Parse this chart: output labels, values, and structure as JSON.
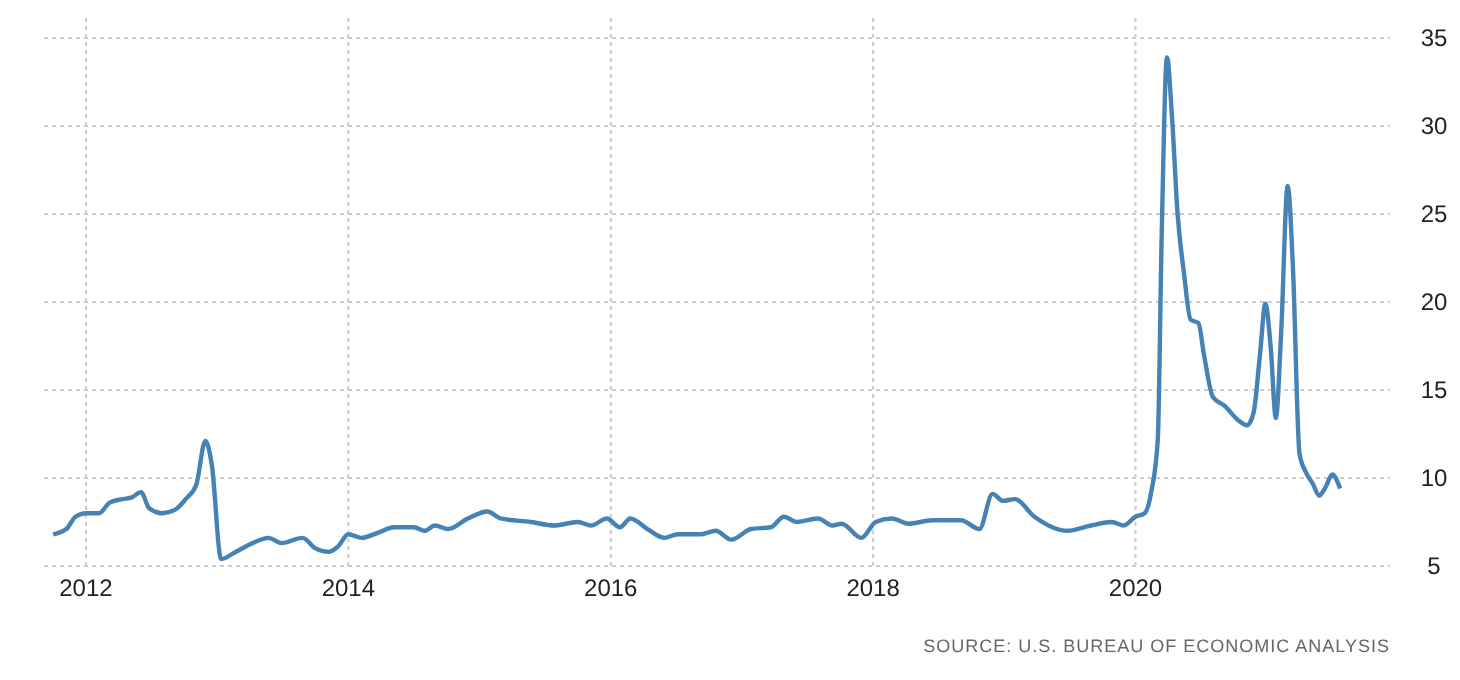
{
  "chart_data": {
    "type": "line",
    "x": [
      2011.75,
      2011.85,
      2011.92,
      2012.0,
      2012.1,
      2012.18,
      2012.28,
      2012.35,
      2012.42,
      2012.48,
      2012.58,
      2012.68,
      2012.76,
      2012.84,
      2012.91,
      2012.96,
      2013.03,
      2013.14,
      2013.27,
      2013.39,
      2013.49,
      2013.65,
      2013.75,
      2013.85,
      2013.92,
      2014.0,
      2014.1,
      2014.23,
      2014.35,
      2014.5,
      2014.58,
      2014.66,
      2014.76,
      2014.91,
      2015.06,
      2015.16,
      2015.39,
      2015.57,
      2015.75,
      2015.85,
      2015.97,
      2016.07,
      2016.15,
      2016.28,
      2016.41,
      2016.51,
      2016.68,
      2016.8,
      2016.92,
      2017.07,
      2017.22,
      2017.32,
      2017.42,
      2017.58,
      2017.69,
      2017.76,
      2017.91,
      2018.02,
      2018.14,
      2018.27,
      2018.45,
      2018.67,
      2018.81,
      2018.91,
      2018.99,
      2019.08,
      2019.23,
      2019.48,
      2019.66,
      2019.82,
      2019.91,
      2020.0,
      2020.07,
      2020.12,
      2020.17,
      2020.2,
      2020.24,
      2020.28,
      2020.32,
      2020.37,
      2020.42,
      2020.48,
      2020.52,
      2020.59,
      2020.68,
      2020.78,
      2020.85,
      2020.9,
      2020.95,
      2020.99,
      2021.03,
      2021.07,
      2021.11,
      2021.16,
      2021.2,
      2021.25,
      2021.3,
      2021.35,
      2021.4,
      2021.45,
      2021.5,
      2021.56
    ],
    "series": [
      {
        "color": "#4682b4",
        "values": [
          6.8,
          7.1,
          7.8,
          8.0,
          8.0,
          8.6,
          8.8,
          8.9,
          9.2,
          8.3,
          8.0,
          8.2,
          8.8,
          9.6,
          12.1,
          10.7,
          5.4,
          5.8,
          6.3,
          6.6,
          6.3,
          6.6,
          6.0,
          5.8,
          6.1,
          6.8,
          6.6,
          6.9,
          7.2,
          7.2,
          7.0,
          7.3,
          7.1,
          7.7,
          8.1,
          7.7,
          7.5,
          7.3,
          7.5,
          7.3,
          7.7,
          7.2,
          7.7,
          7.1,
          6.6,
          6.8,
          6.8,
          7.0,
          6.5,
          7.1,
          7.2,
          7.8,
          7.5,
          7.7,
          7.3,
          7.4,
          6.6,
          7.5,
          7.7,
          7.4,
          7.6,
          7.6,
          7.1,
          9.1,
          8.7,
          8.8,
          7.8,
          7.0,
          7.3,
          7.5,
          7.3,
          7.8,
          8.0,
          9.2,
          12.2,
          23.9,
          33.9,
          30.3,
          25.1,
          21.6,
          19.0,
          18.8,
          17.1,
          14.6,
          14.1,
          13.3,
          13.0,
          13.7,
          17.1,
          19.9,
          17.5,
          13.4,
          18.2,
          26.6,
          22.0,
          11.4,
          10.3,
          9.7,
          9.0,
          9.5,
          10.2,
          9.4
        ]
      }
    ],
    "xlim": [
      2011.68,
      2021.94
    ],
    "xticks": [
      2012,
      2014,
      2016,
      2018,
      2020
    ],
    "ylim": [
      5,
      35
    ],
    "yticks": [
      5,
      10,
      15,
      20,
      25,
      30,
      35
    ],
    "grid": true,
    "annotations": [
      "SOURCE: U.S. BUREAU OF ECONOMIC ANALYSIS"
    ]
  }
}
